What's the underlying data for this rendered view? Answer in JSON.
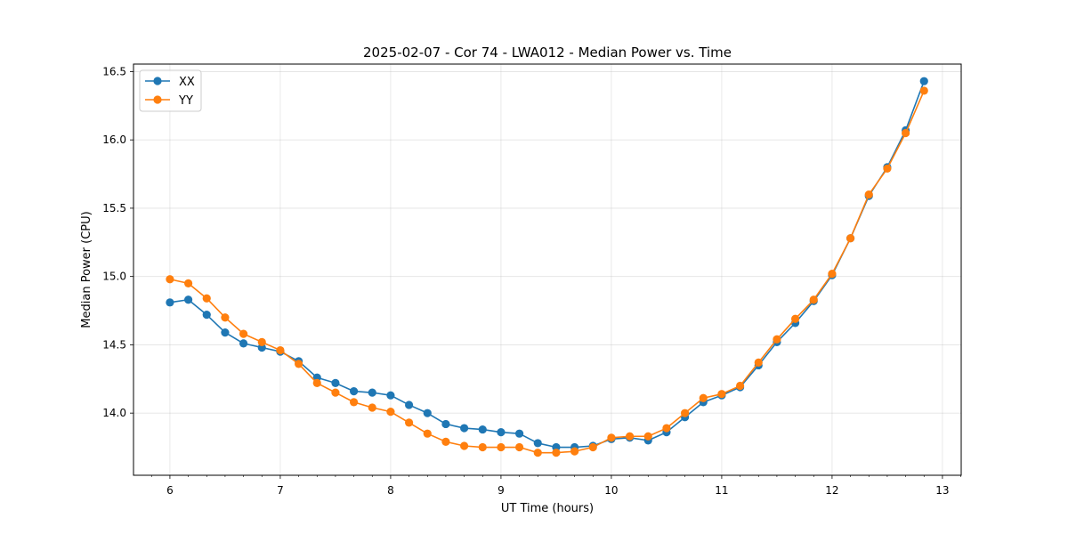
{
  "chart_data": {
    "type": "line",
    "title": "2025-02-07 - Cor 74 - LWA012 - Median Power vs. Time",
    "xlabel": "UT Time (hours)",
    "ylabel": "Median Power (CPU)",
    "xlim": [
      5.67,
      13.17
    ],
    "ylim": [
      13.545,
      16.555
    ],
    "xticks": [
      6,
      7,
      8,
      9,
      10,
      11,
      12,
      13
    ],
    "yticks": [
      14.0,
      14.5,
      15.0,
      15.5,
      16.0,
      16.5
    ],
    "ytick_labels": [
      "14.0",
      "14.5",
      "15.0",
      "15.5",
      "16.0",
      "16.5"
    ],
    "grid": true,
    "legend_position": "upper-left",
    "x": [
      6.0,
      6.1667,
      6.3333,
      6.5,
      6.6667,
      6.8333,
      7.0,
      7.1667,
      7.3333,
      7.5,
      7.6667,
      7.8333,
      8.0,
      8.1667,
      8.3333,
      8.5,
      8.6667,
      8.8333,
      9.0,
      9.1667,
      9.3333,
      9.5,
      9.6667,
      9.8333,
      10.0,
      10.1667,
      10.3333,
      10.5,
      10.6667,
      10.8333,
      11.0,
      11.1667,
      11.3333,
      11.5,
      11.6667,
      11.8333,
      12.0,
      12.1667,
      12.3333,
      12.5,
      12.6667,
      12.8333
    ],
    "series": [
      {
        "name": "XX",
        "color": "#1f77b4",
        "values": [
          14.81,
          14.83,
          14.72,
          14.59,
          14.51,
          14.48,
          14.45,
          14.38,
          14.26,
          14.22,
          14.16,
          14.15,
          14.13,
          14.06,
          14.0,
          13.92,
          13.89,
          13.88,
          13.86,
          13.85,
          13.78,
          13.75,
          13.75,
          13.76,
          13.81,
          13.82,
          13.8,
          13.86,
          13.97,
          14.08,
          14.13,
          14.19,
          14.35,
          14.52,
          14.66,
          14.82,
          15.01,
          15.28,
          15.59,
          15.8,
          16.07,
          16.43
        ]
      },
      {
        "name": "YY",
        "color": "#ff7f0e",
        "values": [
          14.98,
          14.95,
          14.84,
          14.7,
          14.58,
          14.52,
          14.46,
          14.36,
          14.22,
          14.15,
          14.08,
          14.04,
          14.01,
          13.93,
          13.85,
          13.79,
          13.76,
          13.75,
          13.75,
          13.75,
          13.71,
          13.71,
          13.72,
          13.75,
          13.82,
          13.83,
          13.83,
          13.89,
          14.0,
          14.11,
          14.14,
          14.2,
          14.37,
          14.54,
          14.69,
          14.83,
          15.02,
          15.28,
          15.6,
          15.79,
          16.05,
          16.36
        ]
      }
    ]
  }
}
